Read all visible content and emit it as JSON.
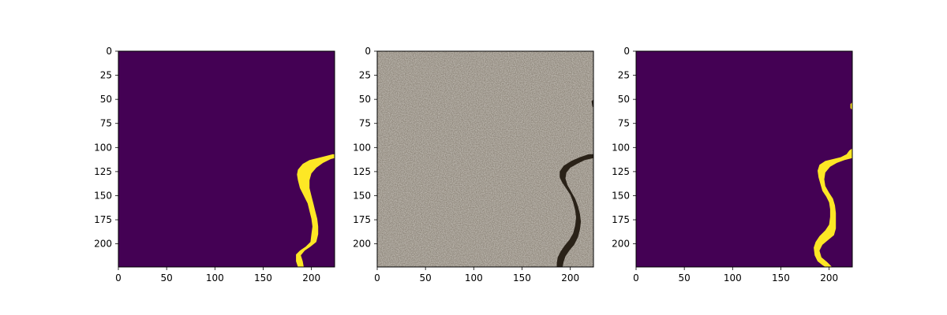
{
  "chart_data": [
    {
      "type": "heatmap",
      "panel": "left",
      "description_kind": "binary-mask",
      "xlim": [
        0,
        224
      ],
      "ylim": [
        224,
        0
      ],
      "xticks": [
        0,
        50,
        100,
        150,
        200
      ],
      "yticks": [
        0,
        25,
        50,
        75,
        100,
        125,
        150,
        175,
        200
      ],
      "colors": {
        "background": "#440154",
        "mask": "#fde725"
      },
      "mask_polygon": [
        [
          224,
          107
        ],
        [
          222,
          107
        ],
        [
          210,
          110
        ],
        [
          198,
          113
        ],
        [
          191,
          117
        ],
        [
          186,
          123
        ],
        [
          185,
          128
        ],
        [
          186,
          134
        ],
        [
          188,
          142
        ],
        [
          192,
          150
        ],
        [
          196,
          158
        ],
        [
          198,
          166
        ],
        [
          200,
          174
        ],
        [
          201,
          182
        ],
        [
          200,
          190
        ],
        [
          199,
          198
        ],
        [
          194,
          203
        ],
        [
          188,
          207
        ],
        [
          184,
          211
        ],
        [
          184,
          218
        ],
        [
          186,
          224
        ],
        [
          192,
          224
        ],
        [
          191,
          218
        ],
        [
          189,
          212
        ],
        [
          193,
          207
        ],
        [
          199,
          203
        ],
        [
          205,
          198
        ],
        [
          207,
          190
        ],
        [
          207,
          182
        ],
        [
          206,
          174
        ],
        [
          204,
          166
        ],
        [
          202,
          158
        ],
        [
          200,
          150
        ],
        [
          198,
          142
        ],
        [
          198,
          134
        ],
        [
          200,
          127
        ],
        [
          205,
          121
        ],
        [
          212,
          116
        ],
        [
          220,
          112
        ],
        [
          224,
          111
        ]
      ]
    },
    {
      "type": "heatmap",
      "panel": "middle",
      "description_kind": "rgb-photo",
      "xlim": [
        0,
        224
      ],
      "ylim": [
        224,
        0
      ],
      "xticks": [
        0,
        50,
        100,
        150,
        200
      ],
      "yticks": [
        0,
        25,
        50,
        75,
        100,
        125,
        150,
        175,
        200
      ],
      "colors": {
        "surface": "#8f877b",
        "surface_dark": "#6f695f",
        "surface_light": "#aaa397",
        "crack": "#2a2218"
      },
      "crack_polygon": [
        [
          224,
          107
        ],
        [
          219,
          107
        ],
        [
          210,
          110
        ],
        [
          201,
          114
        ],
        [
          193,
          119
        ],
        [
          189,
          125
        ],
        [
          189,
          131
        ],
        [
          192,
          137
        ],
        [
          196,
          143
        ],
        [
          200,
          149
        ],
        [
          203,
          157
        ],
        [
          205,
          165
        ],
        [
          206,
          173
        ],
        [
          205,
          181
        ],
        [
          203,
          189
        ],
        [
          199,
          196
        ],
        [
          194,
          202
        ],
        [
          190,
          208
        ],
        [
          187,
          214
        ],
        [
          186,
          220
        ],
        [
          186,
          224
        ],
        [
          192,
          224
        ],
        [
          193,
          219
        ],
        [
          195,
          213
        ],
        [
          199,
          207
        ],
        [
          204,
          201
        ],
        [
          208,
          193
        ],
        [
          210,
          185
        ],
        [
          211,
          177
        ],
        [
          210,
          169
        ],
        [
          208,
          161
        ],
        [
          205,
          153
        ],
        [
          201,
          146
        ],
        [
          197,
          139
        ],
        [
          195,
          132
        ],
        [
          196,
          126
        ],
        [
          200,
          121
        ],
        [
          207,
          117
        ],
        [
          215,
          113
        ],
        [
          224,
          111
        ]
      ],
      "crack_spur": [
        [
          224,
          50
        ],
        [
          222,
          52
        ],
        [
          223,
          58
        ],
        [
          224,
          58
        ]
      ]
    },
    {
      "type": "heatmap",
      "panel": "right",
      "description_kind": "binary-mask",
      "xlim": [
        0,
        224
      ],
      "ylim": [
        224,
        0
      ],
      "xticks": [
        0,
        50,
        100,
        150,
        200
      ],
      "yticks": [
        0,
        25,
        50,
        75,
        100,
        125,
        150,
        175,
        200
      ],
      "colors": {
        "background": "#440154",
        "mask": "#fde725"
      },
      "mask_polygon": [
        [
          224,
          101
        ],
        [
          221,
          103
        ],
        [
          218,
          107
        ],
        [
          212,
          110
        ],
        [
          204,
          112
        ],
        [
          196,
          114
        ],
        [
          190,
          118
        ],
        [
          188,
          124
        ],
        [
          189,
          131
        ],
        [
          191,
          138
        ],
        [
          193,
          145
        ],
        [
          197,
          151
        ],
        [
          200,
          157
        ],
        [
          201,
          164
        ],
        [
          201,
          172
        ],
        [
          200,
          180
        ],
        [
          196,
          186
        ],
        [
          190,
          192
        ],
        [
          186,
          198
        ],
        [
          184,
          204
        ],
        [
          185,
          212
        ],
        [
          188,
          218
        ],
        [
          193,
          222
        ],
        [
          196,
          224
        ],
        [
          203,
          224
        ],
        [
          198,
          219
        ],
        [
          192,
          214
        ],
        [
          190,
          207
        ],
        [
          193,
          201
        ],
        [
          199,
          196
        ],
        [
          205,
          191
        ],
        [
          207,
          184
        ],
        [
          207,
          176
        ],
        [
          207,
          168
        ],
        [
          206,
          160
        ],
        [
          204,
          153
        ],
        [
          200,
          147
        ],
        [
          196,
          140
        ],
        [
          195,
          133
        ],
        [
          196,
          126
        ],
        [
          201,
          120
        ],
        [
          208,
          116
        ],
        [
          216,
          113
        ],
        [
          224,
          111
        ]
      ],
      "mask_spur": [
        [
          224,
          53
        ],
        [
          222,
          55
        ],
        [
          222,
          59
        ],
        [
          224,
          61
        ]
      ]
    }
  ]
}
